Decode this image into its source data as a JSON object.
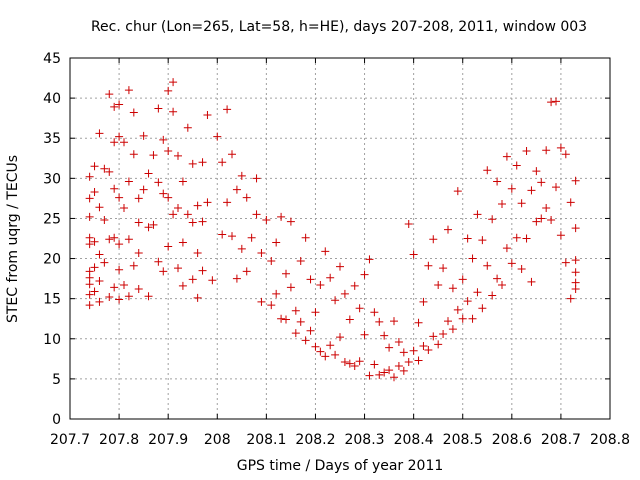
{
  "chart_data": {
    "type": "scatter",
    "title": "Rec. chur (Lon=265, Lat=58, h=HE), days 207-208, 2011, window 003",
    "xlabel": "GPS time / Days of year 2011",
    "ylabel": "STEC from uqrg / TECUs",
    "xlim": [
      207.7,
      208.8
    ],
    "ylim": [
      0,
      45
    ],
    "xticks": [
      "207.7",
      "207.8",
      "207.9",
      "208",
      "208.1",
      "208.2",
      "208.3",
      "208.4",
      "208.5",
      "208.6",
      "208.7",
      "208.8"
    ],
    "yticks": [
      "0",
      "5",
      "10",
      "15",
      "20",
      "25",
      "30",
      "35",
      "40",
      "45"
    ],
    "grid": true,
    "marker": "plus",
    "color": "#cc0000",
    "x": [
      207.74,
      207.74,
      207.74,
      207.74,
      207.74,
      207.74,
      207.74,
      207.74,
      207.74,
      207.74,
      207.75,
      207.75,
      207.75,
      207.75,
      207.75,
      207.76,
      207.76,
      207.76,
      207.76,
      207.76,
      207.77,
      207.77,
      207.77,
      207.78,
      207.78,
      207.78,
      207.78,
      207.79,
      207.79,
      207.79,
      207.79,
      207.79,
      207.8,
      207.8,
      207.8,
      207.8,
      207.8,
      207.8,
      207.81,
      207.81,
      207.81,
      207.82,
      207.82,
      207.82,
      207.82,
      207.83,
      207.83,
      207.83,
      207.84,
      207.84,
      207.84,
      207.84,
      207.85,
      207.85,
      207.86,
      207.86,
      207.86,
      207.87,
      207.87,
      207.88,
      207.88,
      207.88,
      207.89,
      207.89,
      207.89,
      207.9,
      207.9,
      207.9,
      207.9,
      207.91,
      207.91,
      207.91,
      207.92,
      207.92,
      207.92,
      207.93,
      207.93,
      207.93,
      207.94,
      207.94,
      207.95,
      207.95,
      207.95,
      207.96,
      207.96,
      207.96,
      207.97,
      207.97,
      207.97,
      207.98,
      207.98,
      207.99,
      208.0,
      208.01,
      208.01,
      208.02,
      208.02,
      208.03,
      208.03,
      208.04,
      208.04,
      208.05,
      208.05,
      208.06,
      208.06,
      208.07,
      208.08,
      208.08,
      208.09,
      208.09,
      208.1,
      208.11,
      208.11,
      208.12,
      208.12,
      208.13,
      208.13,
      208.14,
      208.14,
      208.15,
      208.15,
      208.16,
      208.16,
      208.17,
      208.17,
      208.18,
      208.18,
      208.19,
      208.19,
      208.2,
      208.2,
      208.21,
      208.21,
      208.22,
      208.22,
      208.23,
      208.23,
      208.24,
      208.24,
      208.25,
      208.25,
      208.26,
      208.26,
      208.27,
      208.27,
      208.28,
      208.28,
      208.29,
      208.29,
      208.3,
      208.3,
      208.31,
      208.31,
      208.32,
      208.32,
      208.33,
      208.33,
      208.34,
      208.34,
      208.35,
      208.35,
      208.36,
      208.36,
      208.37,
      208.37,
      208.38,
      208.38,
      208.39,
      208.39,
      208.4,
      208.4,
      208.41,
      208.41,
      208.42,
      208.42,
      208.43,
      208.43,
      208.44,
      208.44,
      208.45,
      208.45,
      208.46,
      208.46,
      208.47,
      208.47,
      208.48,
      208.48,
      208.49,
      208.49,
      208.5,
      208.5,
      208.51,
      208.51,
      208.52,
      208.52,
      208.53,
      208.53,
      208.54,
      208.54,
      208.55,
      208.55,
      208.56,
      208.56,
      208.57,
      208.57,
      208.58,
      208.58,
      208.59,
      208.59,
      208.6,
      208.6,
      208.61,
      208.61,
      208.62,
      208.62,
      208.63,
      208.63,
      208.64,
      208.64,
      208.65,
      208.65,
      208.66,
      208.66,
      208.67,
      208.67,
      208.68,
      208.68,
      208.69,
      208.69,
      208.7,
      208.7,
      208.71,
      208.71,
      208.72,
      208.72,
      208.73,
      208.73,
      208.73,
      208.73,
      208.73,
      208.73
    ],
    "y": [
      30.2,
      27.5,
      25.2,
      22.6,
      21.8,
      18.4,
      17.6,
      16.8,
      15.5,
      14.2,
      31.5,
      28.3,
      22.1,
      18.9,
      15.9,
      35.6,
      26.4,
      20.5,
      17.2,
      14.6,
      31.2,
      24.8,
      19.5,
      40.5,
      30.8,
      22.4,
      15.2,
      38.9,
      34.5,
      28.7,
      22.6,
      16.4,
      39.2,
      35.2,
      27.6,
      21.8,
      18.6,
      14.9,
      34.5,
      26.3,
      16.7,
      41.0,
      29.6,
      22.4,
      15.3,
      38.2,
      33.0,
      19.1,
      27.5,
      24.5,
      20.7,
      16.2,
      35.3,
      28.6,
      30.6,
      23.9,
      15.3,
      32.9,
      24.2,
      38.7,
      29.5,
      19.6,
      34.8,
      28.1,
      18.4,
      40.9,
      33.4,
      27.6,
      21.5,
      42.0,
      38.3,
      25.5,
      32.8,
      26.3,
      18.8,
      29.6,
      22.0,
      16.6,
      36.3,
      25.5,
      31.8,
      24.5,
      17.4,
      26.6,
      20.7,
      15.1,
      32.0,
      24.6,
      18.5,
      37.9,
      27.0,
      17.3,
      35.2,
      32.0,
      23.0,
      38.6,
      27.0,
      33.0,
      22.8,
      28.6,
      17.5,
      30.3,
      21.2,
      27.6,
      18.4,
      22.6,
      30.0,
      25.5,
      20.7,
      14.6,
      24.8,
      19.7,
      14.2,
      22.0,
      15.6,
      25.2,
      12.5,
      18.1,
      12.4,
      24.6,
      16.4,
      13.5,
      10.7,
      19.7,
      12.1,
      22.6,
      9.8,
      17.4,
      11.0,
      13.3,
      9.0,
      16.7,
      8.4,
      20.9,
      7.8,
      17.6,
      9.2,
      14.8,
      8.0,
      19.0,
      10.2,
      15.6,
      7.1,
      12.4,
      6.9,
      16.6,
      6.6,
      13.8,
      7.2,
      18.0,
      10.5,
      19.9,
      5.4,
      13.3,
      6.8,
      12.1,
      5.5,
      10.4,
      5.8,
      8.9,
      6.1,
      12.2,
      5.2,
      9.6,
      6.6,
      8.3,
      6.0,
      24.3,
      7.1,
      20.5,
      8.5,
      12.0,
      7.3,
      14.6,
      9.1,
      19.1,
      8.6,
      22.4,
      10.3,
      16.7,
      9.3,
      18.8,
      10.6,
      23.6,
      12.2,
      16.3,
      11.2,
      28.4,
      13.6,
      17.4,
      12.5,
      22.5,
      14.7,
      20.0,
      12.5,
      25.5,
      15.8,
      22.3,
      13.8,
      31.0,
      19.1,
      24.9,
      15.4,
      29.6,
      17.5,
      26.8,
      16.7,
      32.7,
      21.3,
      28.7,
      19.4,
      31.6,
      22.6,
      26.9,
      18.7,
      33.4,
      22.5,
      28.5,
      17.1,
      30.9,
      24.6,
      29.5,
      25.0,
      33.5,
      26.3,
      39.5,
      24.8,
      39.6,
      28.9,
      33.8,
      22.9,
      33.0,
      19.5,
      27.0,
      15.0,
      29.7,
      23.8,
      19.8,
      18.3,
      17.0,
      16.2
    ]
  }
}
